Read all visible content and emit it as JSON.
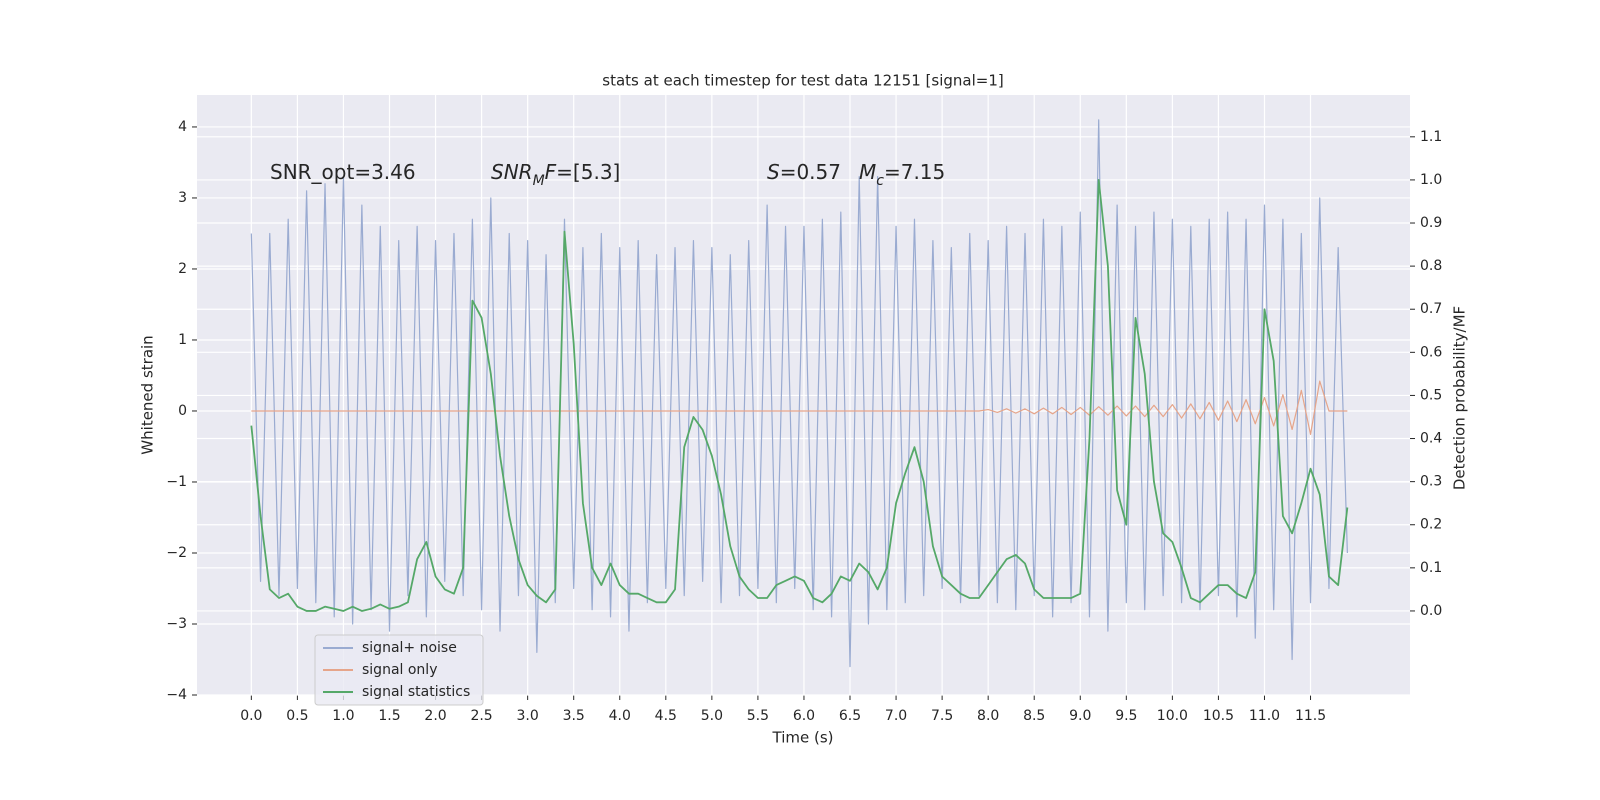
{
  "chart_data": {
    "type": "line",
    "title": "stats at each timestep for test data 12151 [signal=1]",
    "xlabel": "Time (s)",
    "ylabel": "Whitened strain",
    "y2label": "Detection probability/MF",
    "annotations": [
      [
        "SNR_opt=3.46"
      ],
      [
        "SNR",
        "M",
        "F",
        "=[5.3]"
      ],
      [
        "S",
        "=0.57"
      ],
      [
        "M",
        "c",
        "=7.15"
      ]
    ],
    "xlim": [
      -0.59,
      12.58
    ],
    "ylim": [
      -4,
      4.45
    ],
    "y2lim": [
      -0.195,
      1.197
    ],
    "xticks": [
      {
        "value": 0,
        "label": "0.0"
      },
      0.5,
      {
        "value": 1,
        "label": "1.0"
      },
      1.5,
      {
        "value": 2,
        "label": "2.0"
      },
      2.5,
      {
        "value": 3,
        "label": "3.0"
      },
      3.5,
      {
        "value": 4,
        "label": "4.0"
      },
      4.5,
      {
        "value": 5,
        "label": "5.0"
      },
      5.5,
      {
        "value": 6,
        "label": "6.0"
      },
      6.5,
      {
        "value": 7,
        "label": "7.0"
      },
      7.5,
      {
        "value": 8,
        "label": "8.0"
      },
      8.5,
      {
        "value": 9,
        "label": "9.0"
      },
      9.5,
      {
        "value": 10,
        "label": "10.0"
      },
      10.5,
      {
        "value": 11,
        "label": "11.0"
      },
      11.5
    ],
    "yticks": [
      {
        "value": -4,
        "label": "−4"
      },
      {
        "value": -3,
        "label": "−3"
      },
      {
        "value": -2,
        "label": "−2"
      },
      {
        "value": -1,
        "label": "−1"
      },
      0,
      1,
      2,
      3,
      4
    ],
    "y2ticks": [
      {
        "value": 0,
        "label": "0.0"
      },
      0.1,
      0.2,
      0.3,
      0.4,
      0.5,
      0.6,
      0.7,
      0.8,
      0.9,
      {
        "value": 1,
        "label": "1.0"
      },
      1.1
    ],
    "grid": true,
    "legend": "lower left",
    "x": [
      0,
      0.1,
      0.2,
      0.3,
      0.4,
      0.5,
      0.6,
      0.7,
      0.8,
      0.9,
      1,
      1.1,
      1.2,
      1.3,
      1.4,
      1.5,
      1.6,
      1.7,
      1.8,
      1.9,
      2,
      2.1,
      2.2,
      2.3,
      2.4,
      2.5,
      2.6,
      2.7,
      2.8,
      2.9,
      3,
      3.1,
      3.2,
      3.3,
      3.4,
      3.5,
      3.6,
      3.7,
      3.8,
      3.9,
      4,
      4.1,
      4.2,
      4.3,
      4.4,
      4.5,
      4.6,
      4.7,
      4.8,
      4.9,
      5,
      5.1,
      5.2,
      5.3,
      5.4,
      5.5,
      5.6,
      5.7,
      5.8,
      5.9,
      6,
      6.1,
      6.2,
      6.3,
      6.4,
      6.5,
      6.6,
      6.7,
      6.8,
      6.9,
      7,
      7.1,
      7.2,
      7.3,
      7.4,
      7.5,
      7.6,
      7.7,
      7.8,
      7.9,
      8,
      8.1,
      8.2,
      8.3,
      8.4,
      8.5,
      8.6,
      8.7,
      8.8,
      8.9,
      9,
      9.1,
      9.2,
      9.3,
      9.4,
      9.5,
      9.6,
      9.7,
      9.8,
      9.9,
      10,
      10.1,
      10.2,
      10.3,
      10.4,
      10.5,
      10.6,
      10.7,
      10.8,
      10.9,
      11,
      11.1,
      11.2,
      11.3,
      11.4,
      11.5,
      11.6,
      11.7,
      11.8,
      11.9
    ],
    "series": [
      {
        "name": "signal+ noise",
        "color": "#9aabd1",
        "values": [
          2.5,
          -2.4,
          2.5,
          -2.6,
          2.7,
          -2.5,
          3.1,
          -2.7,
          3.2,
          -2.9,
          3.3,
          -3.0,
          2.9,
          -2.8,
          2.6,
          -3.1,
          2.4,
          -2.6,
          2.6,
          -2.9,
          2.4,
          -2.4,
          2.5,
          -2.6,
          2.7,
          -2.8,
          3.0,
          -3.1,
          2.5,
          -2.6,
          2.4,
          -3.4,
          2.2,
          -2.7,
          2.7,
          -2.5,
          2.3,
          -2.8,
          2.5,
          -2.9,
          2.3,
          -3.1,
          2.4,
          -2.7,
          2.2,
          -2.5,
          2.3,
          -2.6,
          2.4,
          -2.4,
          2.3,
          -2.7,
          2.2,
          -2.6,
          2.4,
          -2.5,
          2.9,
          -2.7,
          2.6,
          -2.5,
          2.6,
          -2.8,
          2.7,
          -2.9,
          2.8,
          -3.6,
          3.3,
          -3.0,
          3.3,
          -2.8,
          2.6,
          -2.7,
          2.7,
          -2.6,
          2.4,
          -2.5,
          2.3,
          -2.7,
          2.5,
          -2.6,
          2.4,
          -2.7,
          2.6,
          -2.8,
          2.5,
          -2.6,
          2.7,
          -2.9,
          2.6,
          -2.7,
          2.8,
          -2.9,
          4.1,
          -3.1,
          2.9,
          -2.7,
          2.6,
          -2.8,
          2.8,
          -2.6,
          2.7,
          -2.7,
          2.6,
          -2.8,
          2.7,
          -2.6,
          2.8,
          -2.9,
          2.7,
          -3.2,
          2.9,
          -2.8,
          2.7,
          -3.5,
          2.5,
          -2.7,
          3.0,
          -2.5,
          2.3,
          -2.0
        ]
      },
      {
        "name": "signal only",
        "color": "#e6a58a",
        "values": [
          0,
          0,
          0,
          0,
          0,
          0,
          0,
          0,
          0,
          0,
          0,
          0,
          0,
          0,
          0,
          0,
          0,
          0,
          0,
          0,
          0,
          0,
          0,
          0,
          0,
          0,
          0,
          0,
          0,
          0,
          0,
          0,
          0,
          0,
          0,
          0,
          0,
          0,
          0,
          0,
          0,
          0,
          0,
          0,
          0,
          0,
          0,
          0,
          0,
          0,
          0,
          0,
          0,
          0,
          0,
          0,
          0,
          0,
          0,
          0,
          0,
          0,
          0,
          0,
          0,
          0,
          0,
          0,
          0,
          0,
          0,
          0,
          0,
          0,
          0,
          0,
          0,
          0,
          0,
          0,
          0.02,
          -0.02,
          0.03,
          -0.03,
          0.03,
          -0.04,
          0.04,
          -0.04,
          0.05,
          -0.05,
          0.05,
          -0.06,
          0.06,
          -0.06,
          0.07,
          -0.07,
          0.07,
          -0.08,
          0.08,
          -0.08,
          0.09,
          -0.1,
          0.1,
          -0.11,
          0.12,
          -0.13,
          0.14,
          -0.15,
          0.16,
          -0.18,
          0.19,
          -0.21,
          0.23,
          -0.26,
          0.29,
          -0.33,
          0.42,
          0,
          0,
          0
        ]
      },
      {
        "name": "signal statistics",
        "color": "#55a868",
        "axis": "y2",
        "values": [
          0.43,
          0.22,
          0.05,
          0.03,
          0.04,
          0.01,
          0,
          0,
          0.01,
          0.005,
          0,
          0.01,
          0,
          0.005,
          0.015,
          0.005,
          0.01,
          0.02,
          0.12,
          0.16,
          0.08,
          0.05,
          0.04,
          0.1,
          0.72,
          0.68,
          0.55,
          0.36,
          0.22,
          0.12,
          0.06,
          0.035,
          0.02,
          0.05,
          0.88,
          0.62,
          0.25,
          0.1,
          0.06,
          0.11,
          0.06,
          0.04,
          0.04,
          0.03,
          0.02,
          0.02,
          0.05,
          0.38,
          0.45,
          0.42,
          0.36,
          0.27,
          0.15,
          0.08,
          0.05,
          0.03,
          0.03,
          0.06,
          0.07,
          0.08,
          0.07,
          0.03,
          0.02,
          0.04,
          0.08,
          0.07,
          0.11,
          0.09,
          0.05,
          0.1,
          0.25,
          0.32,
          0.38,
          0.3,
          0.15,
          0.08,
          0.06,
          0.04,
          0.03,
          0.03,
          0.06,
          0.09,
          0.12,
          0.13,
          0.11,
          0.05,
          0.03,
          0.03,
          0.03,
          0.03,
          0.04,
          0.4,
          1.0,
          0.8,
          0.28,
          0.2,
          0.68,
          0.55,
          0.3,
          0.18,
          0.16,
          0.1,
          0.03,
          0.02,
          0.04,
          0.06,
          0.06,
          0.04,
          0.03,
          0.09,
          0.7,
          0.58,
          0.22,
          0.18,
          0.25,
          0.33,
          0.27,
          0.08,
          0.06,
          0.24
        ]
      }
    ]
  }
}
